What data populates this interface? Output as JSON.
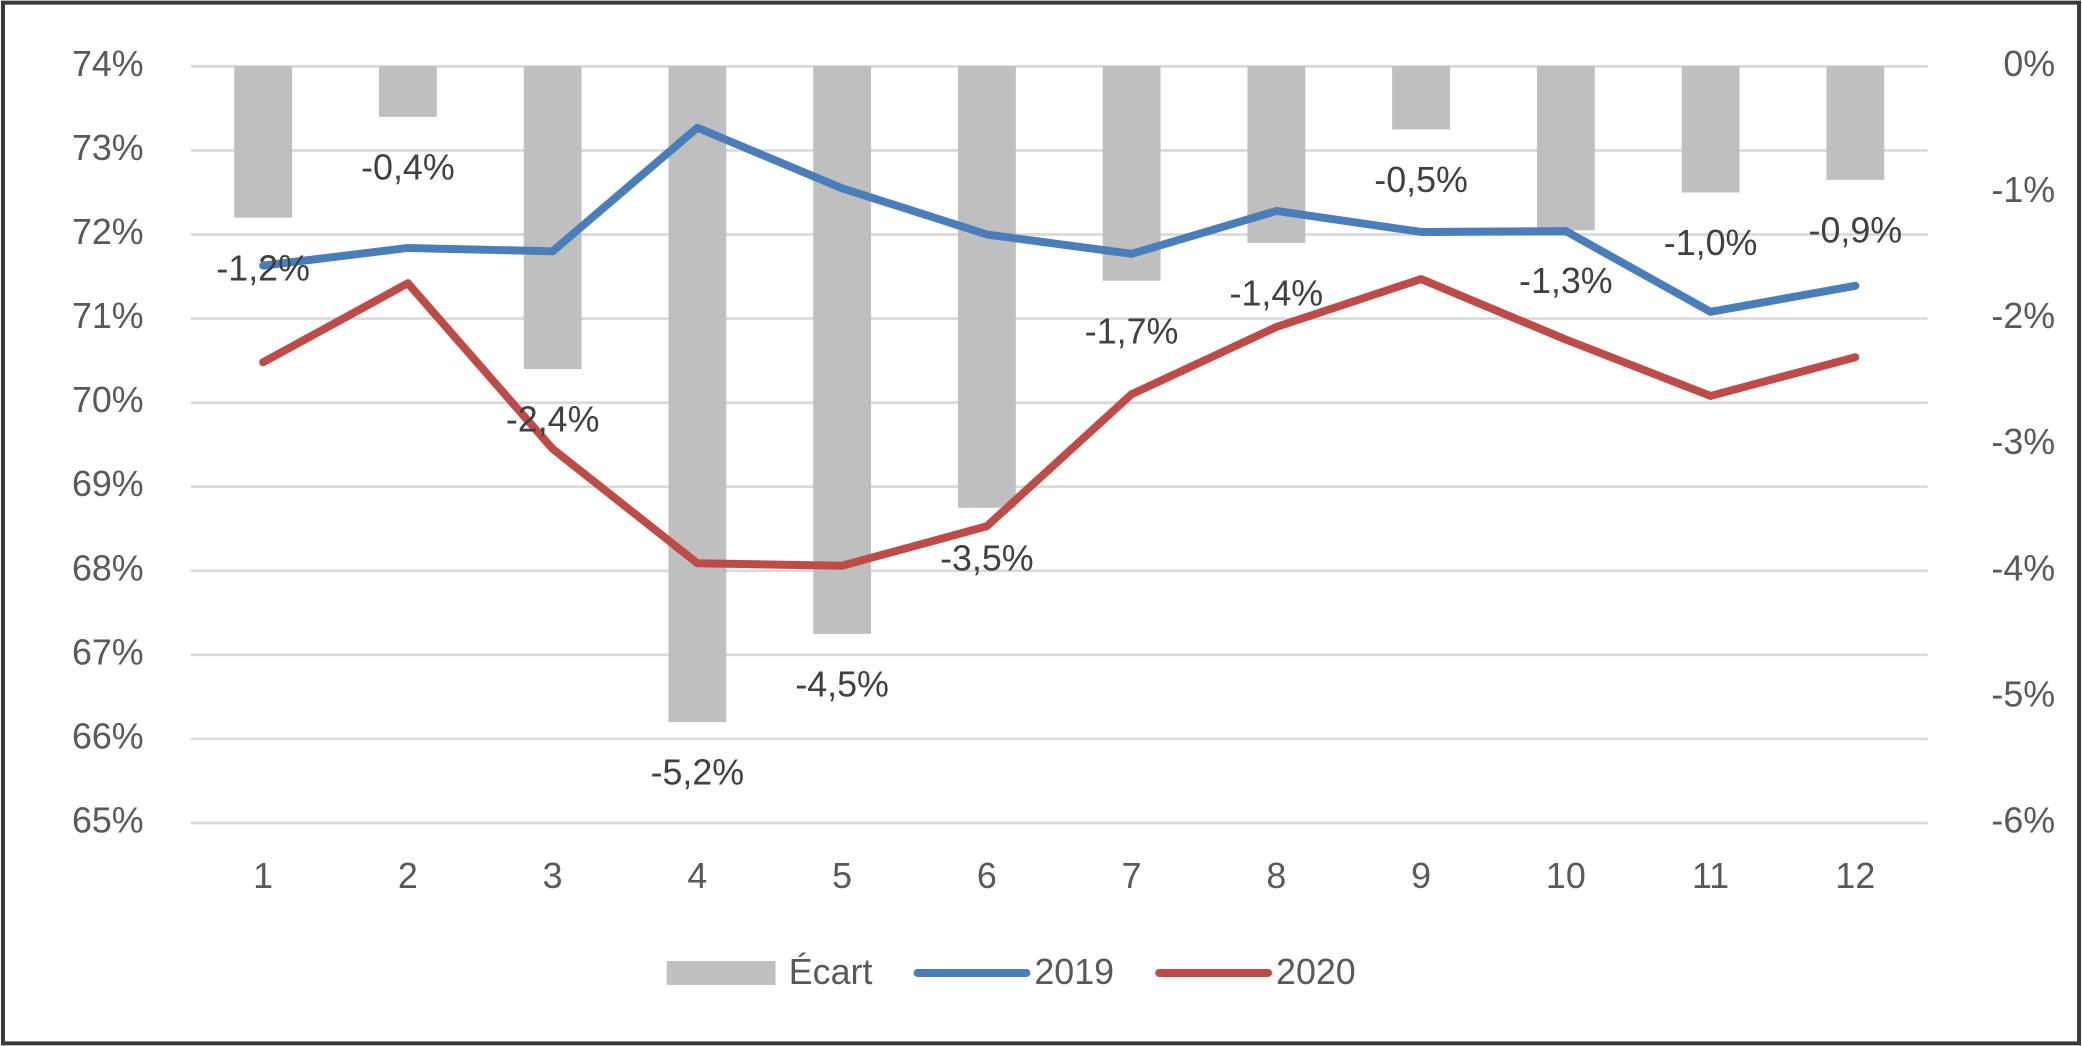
{
  "chart_data": {
    "type": "bar",
    "categories": [
      "1",
      "2",
      "3",
      "4",
      "5",
      "6",
      "7",
      "8",
      "9",
      "10",
      "11",
      "12"
    ],
    "series": [
      {
        "name": "Écart",
        "type": "bar",
        "axis": "y2",
        "color": "#bfbfbf",
        "values": [
          -1.2,
          -0.4,
          -2.4,
          -5.2,
          -4.5,
          -3.5,
          -1.7,
          -1.4,
          -0.5,
          -1.3,
          -1.0,
          -0.9
        ],
        "value_labels": [
          "-1,2%",
          "-0,4%",
          "-2,4%",
          "-5,2%",
          "-4,5%",
          "-3,5%",
          "-1,7%",
          "-1,4%",
          "-0,5%",
          "-1,3%",
          "-1,0%",
          "-0,9%"
        ]
      },
      {
        "name": "2019",
        "type": "line",
        "color": "#4a7ebb",
        "values": [
          71.63,
          71.84,
          71.8,
          73.27,
          72.55,
          72.0,
          71.77,
          72.28,
          72.03,
          72.04,
          71.08,
          71.39
        ]
      },
      {
        "name": "2020",
        "type": "line",
        "color": "#be4b48",
        "values": [
          70.48,
          71.42,
          69.45,
          68.09,
          68.06,
          68.53,
          70.1,
          70.9,
          71.47,
          70.75,
          70.08,
          70.54
        ]
      }
    ],
    "ylim": [
      65,
      74
    ],
    "yticks": [
      {
        "value": 65,
        "label": "65%"
      },
      {
        "value": 66,
        "label": "66%"
      },
      {
        "value": 67,
        "label": "67%"
      },
      {
        "value": 68,
        "label": "68%"
      },
      {
        "value": 69,
        "label": "69%"
      },
      {
        "value": 70,
        "label": "70%"
      },
      {
        "value": 71,
        "label": "71%"
      },
      {
        "value": 72,
        "label": "72%"
      },
      {
        "value": 73,
        "label": "73%"
      },
      {
        "value": 74,
        "label": "74%"
      }
    ],
    "y2lim": [
      -6,
      0
    ],
    "y2ticks": [
      {
        "value": -6,
        "label": "-6%"
      },
      {
        "value": -5,
        "label": "-5%"
      },
      {
        "value": -4,
        "label": "-4%"
      },
      {
        "value": -3,
        "label": "-3%"
      },
      {
        "value": -2,
        "label": "-2%"
      },
      {
        "value": -1,
        "label": "-1%"
      },
      {
        "value": 0,
        "label": "0%"
      }
    ],
    "grid": true,
    "legend": "bottom"
  }
}
